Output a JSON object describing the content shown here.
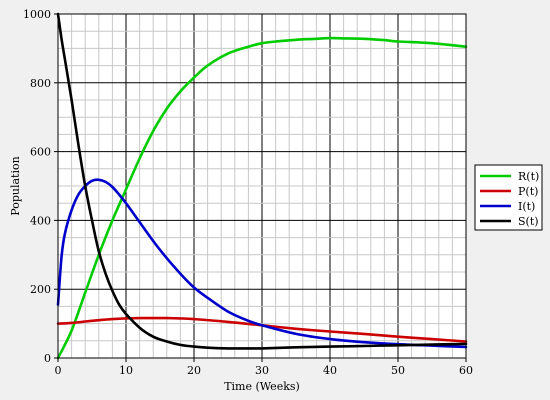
{
  "chart_data": {
    "type": "line",
    "title": "",
    "xlabel": "Time (Weeks)",
    "ylabel": "Population",
    "xlim": [
      0,
      60
    ],
    "ylim": [
      0,
      1000
    ],
    "x_ticks": [
      0,
      10,
      20,
      30,
      40,
      50,
      60
    ],
    "y_ticks": [
      0,
      200,
      400,
      600,
      800,
      1000
    ],
    "grid": true,
    "legend_position": "right",
    "series": [
      {
        "name": "R(t)",
        "color": "#00cc00",
        "x": [
          0,
          2,
          4,
          6,
          8,
          10,
          12,
          14,
          16,
          18,
          20,
          22,
          25,
          28,
          30,
          32,
          35,
          38,
          40,
          42,
          45,
          48,
          50,
          55,
          60
        ],
        "y": [
          0,
          80,
          190,
          300,
          400,
          490,
          580,
          660,
          725,
          775,
          815,
          850,
          885,
          905,
          915,
          920,
          925,
          928,
          930,
          929,
          928,
          924,
          920,
          915,
          905
        ]
      },
      {
        "name": "P(t)",
        "color": "#cc0000",
        "x": [
          0,
          2,
          4,
          6,
          8,
          10,
          12,
          14,
          16,
          18,
          20,
          25,
          30,
          35,
          40,
          45,
          50,
          55,
          60
        ],
        "y": [
          100,
          102,
          106,
          110,
          113,
          115,
          116,
          116,
          116,
          115,
          113,
          105,
          95,
          85,
          77,
          70,
          62,
          55,
          48
        ]
      },
      {
        "name": "I(t)",
        "color": "#0000cc",
        "x": [
          0,
          0.5,
          1,
          2,
          3,
          4,
          5,
          6,
          7,
          8,
          9,
          10,
          12,
          14,
          16,
          18,
          20,
          22,
          25,
          28,
          30,
          35,
          40,
          45,
          50,
          55,
          60
        ],
        "y": [
          155,
          290,
          360,
          430,
          475,
          500,
          515,
          518,
          512,
          497,
          475,
          450,
          395,
          340,
          290,
          245,
          205,
          175,
          135,
          108,
          95,
          70,
          55,
          46,
          40,
          36,
          32
        ]
      },
      {
        "name": "S(t)",
        "color": "#000000",
        "x": [
          0,
          0.5,
          1,
          2,
          3,
          4,
          5,
          6,
          7,
          8,
          9,
          10,
          12,
          14,
          16,
          18,
          20,
          22,
          25,
          28,
          30,
          35,
          40,
          45,
          50,
          55,
          60
        ],
        "y": [
          1000,
          930,
          870,
          750,
          620,
          500,
          400,
          310,
          245,
          195,
          155,
          128,
          88,
          62,
          48,
          38,
          33,
          30,
          28,
          28,
          28,
          31,
          33,
          35,
          37,
          39,
          41
        ]
      }
    ]
  }
}
